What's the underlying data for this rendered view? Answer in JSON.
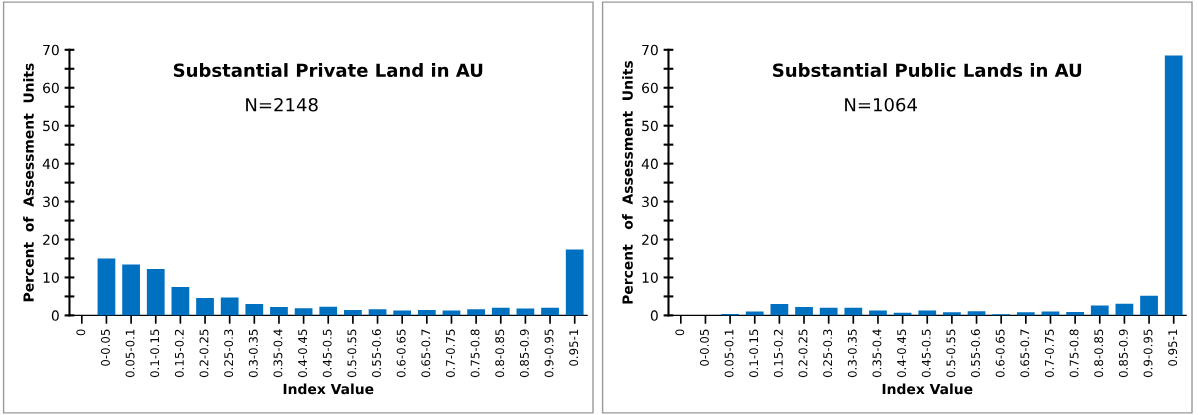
{
  "chart_data": [
    {
      "type": "bar",
      "title": "Substantial Private Land in AU",
      "annotations": [
        "N=2148"
      ],
      "xlabel": "Index Value",
      "ylabel": "Percent  of  Assessment  Units",
      "categories": [
        "0",
        "0-0.05",
        "0.05-0.1",
        "0.1-0.15",
        "0.15-0.2",
        "0.2-0.25",
        "0.25-0.3",
        "0.3-0.35",
        "0.35-0.4",
        "0.4-0.45",
        "0.45-0.5",
        "0.5-0.55",
        "0.55-0.6",
        "0.6-0.65",
        "0.65-0.7",
        "0.7-0.75",
        "0.75-0.8",
        "0.8-0.85",
        "0.85-0.9",
        "0.9-0.95",
        "0.95-1"
      ],
      "values": [
        0,
        15.0,
        13.4,
        12.2,
        7.5,
        4.6,
        4.7,
        3.0,
        2.2,
        1.9,
        2.3,
        1.4,
        1.6,
        1.3,
        1.4,
        1.3,
        1.6,
        2.0,
        1.8,
        2.0,
        17.4
      ],
      "color": "#0070c0",
      "ylim": [
        0,
        70
      ],
      "yticks": [
        0,
        {
          "value": 5,
          "label": null
        },
        10,
        {
          "value": 15,
          "label": null
        },
        20,
        {
          "value": 25,
          "label": null
        },
        30,
        {
          "value": 35,
          "label": null
        },
        40,
        {
          "value": 45,
          "label": null
        },
        50,
        {
          "value": 55,
          "label": null
        },
        60,
        {
          "value": 65,
          "label": null
        },
        70
      ],
      "grid": false,
      "legend": false
    },
    {
      "type": "bar",
      "title": "Substantial Public Lands in AU",
      "annotations": [
        "N=1064"
      ],
      "xlabel": "Index Value",
      "ylabel": "Percent   of  Assessment  Units",
      "categories": [
        "0",
        "0-0.05",
        "0.05-0.1",
        "0.1-0.15",
        "0.15-0.2",
        "0.2-0.25",
        "0.25-0.3",
        "0.3-0.35",
        "0.35-0.4",
        "0.4-0.45",
        "0.45-0.5",
        "0.5-0.55",
        "0.55-0.6",
        "0.6-0.65",
        "0.65-0.7",
        "0.7-0.75",
        "0.75-0.8",
        "0.8-0.85",
        "0.85-0.9",
        "0.9-0.95",
        "0.95-1"
      ],
      "values": [
        0,
        0,
        0.4,
        1.0,
        3.0,
        2.2,
        2.0,
        2.0,
        1.3,
        0.7,
        1.3,
        0.8,
        1.1,
        0.3,
        0.8,
        1.0,
        0.9,
        2.6,
        3.1,
        5.2,
        68.5
      ],
      "color": "#0070c0",
      "ylim": [
        0,
        70
      ],
      "yticks": [
        0,
        {
          "value": 5,
          "label": null
        },
        10,
        {
          "value": 15,
          "label": null
        },
        20,
        {
          "value": 25,
          "label": null
        },
        30,
        {
          "value": 35,
          "label": null
        },
        40,
        {
          "value": 45,
          "label": null
        },
        50,
        {
          "value": 55,
          "label": null
        },
        60,
        {
          "value": 65,
          "label": null
        },
        70
      ],
      "grid": false,
      "legend": false
    }
  ]
}
